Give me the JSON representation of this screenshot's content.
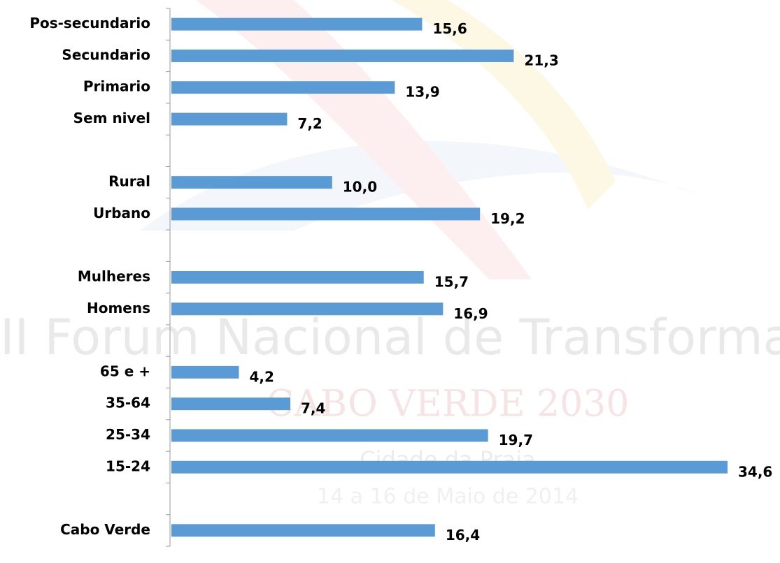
{
  "chart_data": {
    "type": "bar",
    "orientation": "horizontal",
    "categories": [
      "Pos-secundario",
      "Secundario",
      "Primario",
      "Sem nivel",
      null,
      "Rural",
      "Urbano",
      null,
      "Mulheres",
      "Homens",
      null,
      "65 e +",
      "35-64",
      "25-34",
      "15-24",
      null,
      "Cabo Verde"
    ],
    "values": [
      15.6,
      21.3,
      13.9,
      7.2,
      null,
      10.0,
      19.2,
      null,
      15.7,
      16.9,
      null,
      4.2,
      7.4,
      19.7,
      34.6,
      null,
      16.4
    ],
    "value_labels": [
      "15,6",
      "21,3",
      "13,9",
      "7,2",
      null,
      "10,0",
      "19,2",
      null,
      "15,7",
      "16,9",
      null,
      "4,2",
      "7,4",
      "19,7",
      "34,6",
      null,
      "16,4"
    ],
    "color": "#5b9bd5"
  },
  "background": {
    "event": "II Forum Nacional de Transforma",
    "slogan": "CABO VERDE 2030",
    "place": "Cidade da Praia",
    "dates": "14 a 16 de Maio de 2014"
  }
}
